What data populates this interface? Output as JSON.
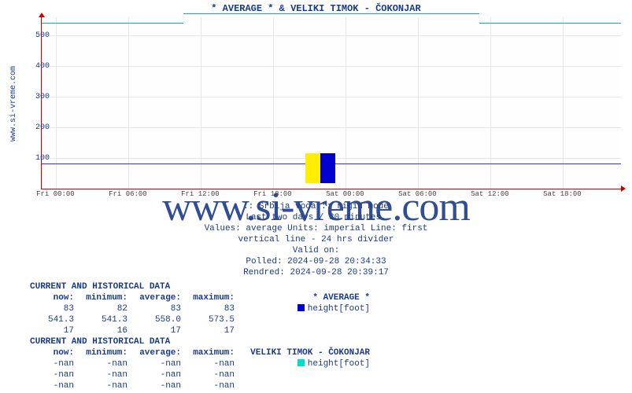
{
  "title": "* AVERAGE * &  VELIKI TIMOK -  ČOKONJAR",
  "side_label": "www.si-vreme.com",
  "watermark": "www.si-vreme.com",
  "chart": {
    "type": "line",
    "ylim": [
      0,
      560
    ],
    "yticks": [
      100,
      200,
      300,
      400,
      500
    ],
    "xticks": [
      "Fri 00:00",
      "Fri 06:00",
      "Fri 12:00",
      "Fri 18:00",
      "Sat 00:00",
      "Sat 06:00",
      "Sat 12:00",
      "Sat 18:00"
    ],
    "grid_color": "#e8e8e8",
    "axis_color": "#cc0000",
    "background": "#fefeff",
    "series": [
      {
        "name": "height_foot_series_upper",
        "color": "#00bbaa",
        "segments": [
          {
            "x0": 0.0,
            "x1": 0.245,
            "y": 541.3
          },
          {
            "x0": 0.245,
            "x1": 0.755,
            "y": 573.5
          },
          {
            "x0": 0.755,
            "x1": 1.0,
            "y": 541.3
          }
        ]
      },
      {
        "name": "height_foot_series_lower",
        "color": "#3333dd",
        "segments": [
          {
            "x0": 0.0,
            "x1": 1.0,
            "y": 83
          }
        ]
      }
    ]
  },
  "meta": {
    "line1": ":: Srbija voda :: rigid mode",
    "line2": "Last two days / 30 minutes.",
    "line3": "Values: average  Units: imperial  Line: first",
    "line4": "vertical line - 24 hrs  divider",
    "line5": "Valid on:",
    "line6": "Polled: 2024-09-28 20:34:33",
    "line7": "Rendred: 2024-09-28 20:39:17"
  },
  "tables": [
    {
      "heading": "CURRENT AND HISTORICAL DATA",
      "cols": {
        "now": "now:",
        "min": "minimum:",
        "avg": "average:",
        "max": "maximum:",
        "lbl": "   * AVERAGE *"
      },
      "swatch_color": "#0000cc",
      "swatch_label": "height[foot]",
      "rows": [
        {
          "now": "83",
          "min": "82",
          "avg": "83",
          "max": "83",
          "has_swatch": true
        },
        {
          "now": "541.3",
          "min": "541.3",
          "avg": "558.0",
          "max": "573.5",
          "has_swatch": false
        },
        {
          "now": "17",
          "min": "16",
          "avg": "17",
          "max": "17",
          "has_swatch": false
        }
      ]
    },
    {
      "heading": "CURRENT AND HISTORICAL DATA",
      "cols": {
        "now": "now:",
        "min": "minimum:",
        "avg": "average:",
        "max": "maximum:",
        "lbl": "   VELIKI TIMOK -  ČOKONJAR"
      },
      "swatch_color": "#00ddcc",
      "swatch_label": "height[foot]",
      "rows": [
        {
          "now": "-nan",
          "min": "-nan",
          "avg": "-nan",
          "max": "-nan",
          "has_swatch": true
        },
        {
          "now": "-nan",
          "min": "-nan",
          "avg": "-nan",
          "max": "-nan",
          "has_swatch": false
        },
        {
          "now": "-nan",
          "min": "-nan",
          "avg": "-nan",
          "max": "-nan",
          "has_swatch": false
        }
      ]
    }
  ]
}
